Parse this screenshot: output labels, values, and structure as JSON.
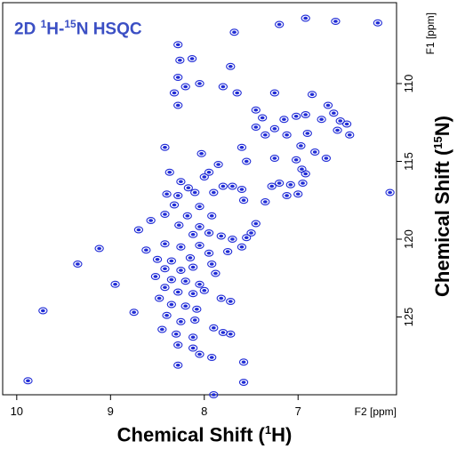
{
  "chart_data": {
    "type": "scatter",
    "title_prefix": "2D ",
    "title_sup1": "1",
    "title_mid": "H-",
    "title_sup2": "15",
    "title_suffix": "N HSQC",
    "xlabel_prefix": "Chemical Shift (",
    "xlabel_sup": "1",
    "xlabel_suffix": "H)",
    "ylabel_prefix": "Chemical Shift (",
    "ylabel_sup": "15",
    "ylabel_suffix": "N)",
    "x_unit_label": "F2 [ppm]",
    "y_unit_label": "F1 [ppm]",
    "x_axis": "1H chemical shift (ppm), reversed",
    "y_axis": "15N chemical shift (ppm), reversed",
    "xlim": [
      10.15,
      5.95
    ],
    "ylim": [
      130.0,
      104.8
    ],
    "x_ticks": [
      10,
      9,
      8,
      7
    ],
    "y_ticks": [
      110,
      115,
      120,
      125
    ],
    "grid": false,
    "colors": {
      "contour": "#1f2bd6",
      "title": "#3b4fc4",
      "negative": "#3aa6a0"
    },
    "peaks": [
      {
        "x": 7.2,
        "y": 106.2
      },
      {
        "x": 6.92,
        "y": 105.8
      },
      {
        "x": 6.6,
        "y": 106.0
      },
      {
        "x": 6.15,
        "y": 106.1
      },
      {
        "x": 7.68,
        "y": 106.7
      },
      {
        "x": 8.28,
        "y": 107.5
      },
      {
        "x": 8.26,
        "y": 108.5
      },
      {
        "x": 8.13,
        "y": 108.4
      },
      {
        "x": 7.72,
        "y": 108.9
      },
      {
        "x": 8.28,
        "y": 109.6
      },
      {
        "x": 8.05,
        "y": 110.0
      },
      {
        "x": 8.32,
        "y": 110.6
      },
      {
        "x": 8.2,
        "y": 110.2
      },
      {
        "x": 7.8,
        "y": 110.2
      },
      {
        "x": 7.65,
        "y": 110.6
      },
      {
        "x": 8.28,
        "y": 111.4
      },
      {
        "x": 7.25,
        "y": 110.6
      },
      {
        "x": 6.85,
        "y": 110.7
      },
      {
        "x": 7.45,
        "y": 111.7
      },
      {
        "x": 7.38,
        "y": 112.2
      },
      {
        "x": 7.45,
        "y": 112.8
      },
      {
        "x": 7.35,
        "y": 113.3
      },
      {
        "x": 7.25,
        "y": 112.9
      },
      {
        "x": 7.15,
        "y": 112.3
      },
      {
        "x": 7.12,
        "y": 113.3
      },
      {
        "x": 6.75,
        "y": 112.3
      },
      {
        "x": 6.62,
        "y": 111.9
      },
      {
        "x": 6.55,
        "y": 112.4
      },
      {
        "x": 6.48,
        "y": 112.6
      },
      {
        "x": 6.58,
        "y": 113.0
      },
      {
        "x": 6.45,
        "y": 113.3
      },
      {
        "x": 6.68,
        "y": 111.4
      },
      {
        "x": 6.92,
        "y": 112.0
      },
      {
        "x": 6.9,
        "y": 113.2
      },
      {
        "x": 7.02,
        "y": 112.1
      },
      {
        "x": 6.97,
        "y": 114.0
      },
      {
        "x": 6.82,
        "y": 114.4
      },
      {
        "x": 6.7,
        "y": 114.8
      },
      {
        "x": 7.6,
        "y": 114.1
      },
      {
        "x": 8.42,
        "y": 114.1
      },
      {
        "x": 8.03,
        "y": 114.5
      },
      {
        "x": 7.55,
        "y": 115.0
      },
      {
        "x": 7.25,
        "y": 114.8
      },
      {
        "x": 7.02,
        "y": 114.9
      },
      {
        "x": 6.96,
        "y": 115.5
      },
      {
        "x": 6.92,
        "y": 115.8
      },
      {
        "x": 7.85,
        "y": 115.2
      },
      {
        "x": 7.95,
        "y": 115.7
      },
      {
        "x": 8.37,
        "y": 115.7
      },
      {
        "x": 8.0,
        "y": 116.0
      },
      {
        "x": 8.25,
        "y": 116.3
      },
      {
        "x": 7.8,
        "y": 116.6
      },
      {
        "x": 8.17,
        "y": 116.7
      },
      {
        "x": 8.1,
        "y": 117.0
      },
      {
        "x": 7.9,
        "y": 117.0
      },
      {
        "x": 8.4,
        "y": 117.1
      },
      {
        "x": 8.28,
        "y": 117.2
      },
      {
        "x": 7.7,
        "y": 116.6
      },
      {
        "x": 7.6,
        "y": 116.8
      },
      {
        "x": 7.28,
        "y": 116.6
      },
      {
        "x": 7.2,
        "y": 116.4
      },
      {
        "x": 7.08,
        "y": 116.5
      },
      {
        "x": 6.95,
        "y": 116.4
      },
      {
        "x": 7.12,
        "y": 117.2
      },
      {
        "x": 6.02,
        "y": 117.0
      },
      {
        "x": 7.58,
        "y": 117.5
      },
      {
        "x": 7.35,
        "y": 117.6
      },
      {
        "x": 7.0,
        "y": 117.1
      },
      {
        "x": 8.32,
        "y": 117.8
      },
      {
        "x": 8.05,
        "y": 117.9
      },
      {
        "x": 8.18,
        "y": 118.5
      },
      {
        "x": 7.92,
        "y": 118.5
      },
      {
        "x": 8.42,
        "y": 118.4
      },
      {
        "x": 8.57,
        "y": 118.8
      },
      {
        "x": 8.7,
        "y": 119.4
      },
      {
        "x": 8.27,
        "y": 119.1
      },
      {
        "x": 8.05,
        "y": 119.2
      },
      {
        "x": 8.12,
        "y": 119.7
      },
      {
        "x": 7.95,
        "y": 119.6
      },
      {
        "x": 7.82,
        "y": 119.8
      },
      {
        "x": 7.7,
        "y": 120.0
      },
      {
        "x": 7.55,
        "y": 119.9
      },
      {
        "x": 7.6,
        "y": 120.5
      },
      {
        "x": 7.75,
        "y": 120.8
      },
      {
        "x": 7.45,
        "y": 119.0
      },
      {
        "x": 7.5,
        "y": 119.6
      },
      {
        "x": 8.42,
        "y": 120.3
      },
      {
        "x": 8.62,
        "y": 120.7
      },
      {
        "x": 8.25,
        "y": 120.5
      },
      {
        "x": 8.05,
        "y": 120.4
      },
      {
        "x": 7.95,
        "y": 120.9
      },
      {
        "x": 8.15,
        "y": 121.2
      },
      {
        "x": 8.35,
        "y": 121.4
      },
      {
        "x": 8.5,
        "y": 121.3
      },
      {
        "x": 8.42,
        "y": 121.9
      },
      {
        "x": 8.25,
        "y": 122.0
      },
      {
        "x": 8.12,
        "y": 121.8
      },
      {
        "x": 7.92,
        "y": 121.6
      },
      {
        "x": 7.88,
        "y": 122.2
      },
      {
        "x": 8.52,
        "y": 122.4
      },
      {
        "x": 8.35,
        "y": 122.6
      },
      {
        "x": 8.2,
        "y": 122.7
      },
      {
        "x": 8.05,
        "y": 122.9
      },
      {
        "x": 8.42,
        "y": 123.1
      },
      {
        "x": 8.28,
        "y": 123.4
      },
      {
        "x": 8.12,
        "y": 123.5
      },
      {
        "x": 8.0,
        "y": 123.3
      },
      {
        "x": 7.82,
        "y": 123.8
      },
      {
        "x": 7.72,
        "y": 124.0
      },
      {
        "x": 8.48,
        "y": 123.8
      },
      {
        "x": 8.35,
        "y": 124.2
      },
      {
        "x": 8.2,
        "y": 124.3
      },
      {
        "x": 8.08,
        "y": 124.5
      },
      {
        "x": 8.4,
        "y": 124.9
      },
      {
        "x": 8.25,
        "y": 125.3
      },
      {
        "x": 8.1,
        "y": 125.2
      },
      {
        "x": 8.45,
        "y": 125.8
      },
      {
        "x": 8.3,
        "y": 126.1
      },
      {
        "x": 8.12,
        "y": 126.3
      },
      {
        "x": 7.9,
        "y": 125.7
      },
      {
        "x": 7.8,
        "y": 126.0
      },
      {
        "x": 8.28,
        "y": 126.8
      },
      {
        "x": 8.12,
        "y": 127.0
      },
      {
        "x": 8.05,
        "y": 127.4
      },
      {
        "x": 7.92,
        "y": 127.6
      },
      {
        "x": 7.58,
        "y": 127.9
      },
      {
        "x": 8.28,
        "y": 128.1
      },
      {
        "x": 9.12,
        "y": 120.6
      },
      {
        "x": 9.35,
        "y": 121.6
      },
      {
        "x": 8.95,
        "y": 122.9
      },
      {
        "x": 9.72,
        "y": 124.6
      },
      {
        "x": 8.75,
        "y": 124.7
      },
      {
        "x": 7.72,
        "y": 126.1
      },
      {
        "x": 7.58,
        "y": 129.2
      },
      {
        "x": 7.9,
        "y": 130.0
      },
      {
        "x": 9.88,
        "y": 129.1
      }
    ]
  }
}
